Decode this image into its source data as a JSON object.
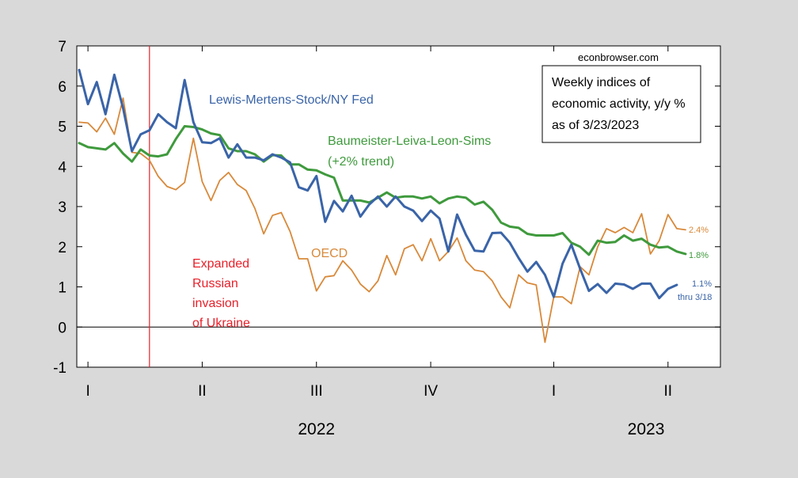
{
  "chart_data": {
    "type": "line",
    "source": "econbrowser.com",
    "title_lines": [
      "Weekly indices of",
      "economic activity, y/y %",
      "as of 3/23/2023"
    ],
    "ylim": [
      -1,
      7
    ],
    "yticks": [
      -1,
      0,
      1,
      2,
      3,
      4,
      5,
      6,
      7
    ],
    "quarter_ticks": [
      {
        "label": "I",
        "x": 1
      },
      {
        "label": "II",
        "x": 14
      },
      {
        "label": "III",
        "x": 27
      },
      {
        "label": "IV",
        "x": 40
      },
      {
        "label": "I",
        "x": 54
      },
      {
        "label": "II",
        "x": 67
      }
    ],
    "year_labels": [
      {
        "label": "2022",
        "x": 27
      },
      {
        "label": "2023",
        "x": 64.5
      }
    ],
    "xlim": [
      -4,
      70
    ],
    "event": {
      "x": 8,
      "label_lines": [
        "Expanded",
        "Russian",
        "invasion",
        "of Ukraine"
      ],
      "color": "#e8202a"
    },
    "series": [
      {
        "name": "Lewis-Mertens-Stock/NY Fed",
        "color": "#3a64a8",
        "end_label": "1.1%",
        "end_note": "thru 3/18",
        "values": [
          6.4,
          5.55,
          6.1,
          5.3,
          6.28,
          5.45,
          4.38,
          4.8,
          4.9,
          5.3,
          5.1,
          4.95,
          6.15,
          5.1,
          4.6,
          4.58,
          4.7,
          4.22,
          4.55,
          4.22,
          4.22,
          4.15,
          4.3,
          4.22,
          4.1,
          3.48,
          3.4,
          3.76,
          2.62,
          3.14,
          2.88,
          3.27,
          2.75,
          3.05,
          3.25,
          3.0,
          3.25,
          3.0,
          2.9,
          2.64,
          2.9,
          2.7,
          1.88,
          2.8,
          2.3,
          1.9,
          1.88,
          2.34,
          2.35,
          2.1,
          1.72,
          1.38,
          1.62,
          1.3,
          0.75,
          1.58,
          2.05,
          1.45,
          0.9,
          1.07,
          0.85,
          1.08,
          1.06,
          0.95,
          1.08,
          1.08,
          0.72,
          0.95,
          1.05
        ]
      },
      {
        "name": "Baumeister-Leiva-Leon-Sims",
        "name_note": "(+2% trend)",
        "color": "#3f9a3d",
        "end_label": "1.8%",
        "values": [
          4.58,
          4.48,
          4.45,
          4.42,
          4.58,
          4.32,
          4.12,
          4.42,
          4.27,
          4.25,
          4.3,
          4.68,
          5.0,
          4.98,
          4.92,
          4.82,
          4.78,
          4.45,
          4.38,
          4.38,
          4.3,
          4.12,
          4.28,
          4.27,
          4.05,
          4.05,
          3.92,
          3.9,
          3.8,
          3.72,
          3.15,
          3.15,
          3.15,
          3.1,
          3.22,
          3.35,
          3.22,
          3.25,
          3.25,
          3.2,
          3.25,
          3.08,
          3.2,
          3.25,
          3.22,
          3.05,
          3.12,
          2.92,
          2.6,
          2.5,
          2.47,
          2.32,
          2.28,
          2.28,
          2.28,
          2.34,
          2.1,
          2.0,
          1.8,
          2.15,
          2.1,
          2.12,
          2.28,
          2.15,
          2.2,
          2.05,
          1.98,
          2.0,
          1.88,
          1.82
        ]
      },
      {
        "name": "OECD",
        "color": "#d8893a",
        "end_label": "2.4%",
        "values": [
          5.1,
          5.08,
          4.86,
          5.2,
          4.8,
          5.7,
          4.35,
          4.32,
          4.15,
          3.75,
          3.5,
          3.42,
          3.6,
          4.7,
          3.62,
          3.15,
          3.65,
          3.85,
          3.55,
          3.4,
          2.95,
          2.32,
          2.78,
          2.85,
          2.38,
          1.7,
          1.7,
          0.9,
          1.25,
          1.28,
          1.65,
          1.42,
          1.07,
          0.88,
          1.15,
          1.78,
          1.3,
          1.95,
          2.05,
          1.65,
          2.2,
          1.65,
          1.88,
          2.22,
          1.65,
          1.42,
          1.38,
          1.15,
          0.75,
          0.48,
          1.3,
          1.1,
          1.05,
          -0.38,
          0.75,
          0.75,
          0.58,
          1.5,
          1.3,
          2.0,
          2.45,
          2.35,
          2.48,
          2.35,
          2.82,
          1.82,
          2.15,
          2.8,
          2.45,
          2.42
        ]
      }
    ]
  }
}
